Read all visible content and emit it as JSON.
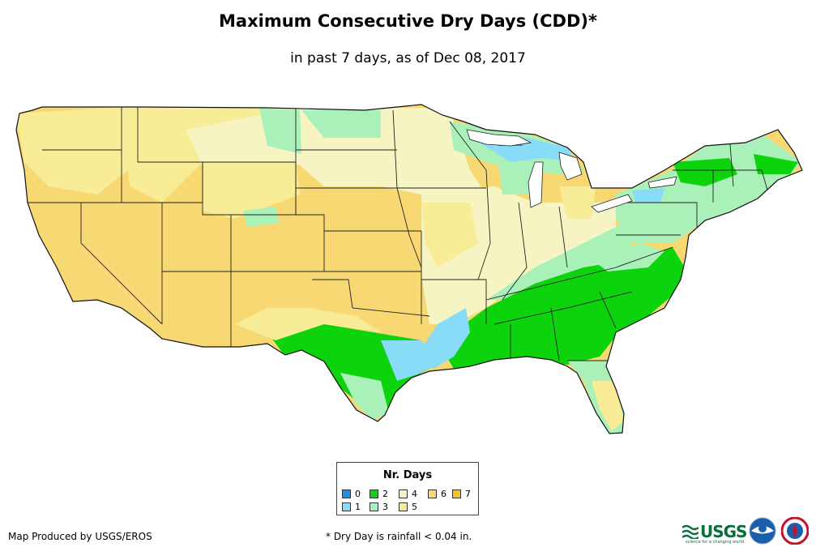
{
  "title": "Maximum Consecutive Dry Days (CDD)*",
  "subtitle": "in past 7 days, as of Dec 08, 2017",
  "legend": {
    "title": "Nr. Days",
    "items": [
      {
        "label": "0",
        "color": "#1f8fe6"
      },
      {
        "label": "1",
        "color": "#88dcf7"
      },
      {
        "label": "2",
        "color": "#0dd30d"
      },
      {
        "label": "3",
        "color": "#a9f0b9"
      },
      {
        "label": "4",
        "color": "#f5f4c2"
      },
      {
        "label": "5",
        "color": "#f9ec97"
      },
      {
        "label": "6",
        "color": "#f7d873"
      },
      {
        "label": "7",
        "color": "#f5c12a"
      }
    ]
  },
  "credit": "Map Produced by USGS/EROS",
  "footnote": "* Dry Day is rainfall < 0.04 in.",
  "logos": {
    "usgs": "USGS",
    "usgs_tagline": "science for a changing world",
    "noaa": "noaa",
    "nws": "National Weather Service"
  }
}
